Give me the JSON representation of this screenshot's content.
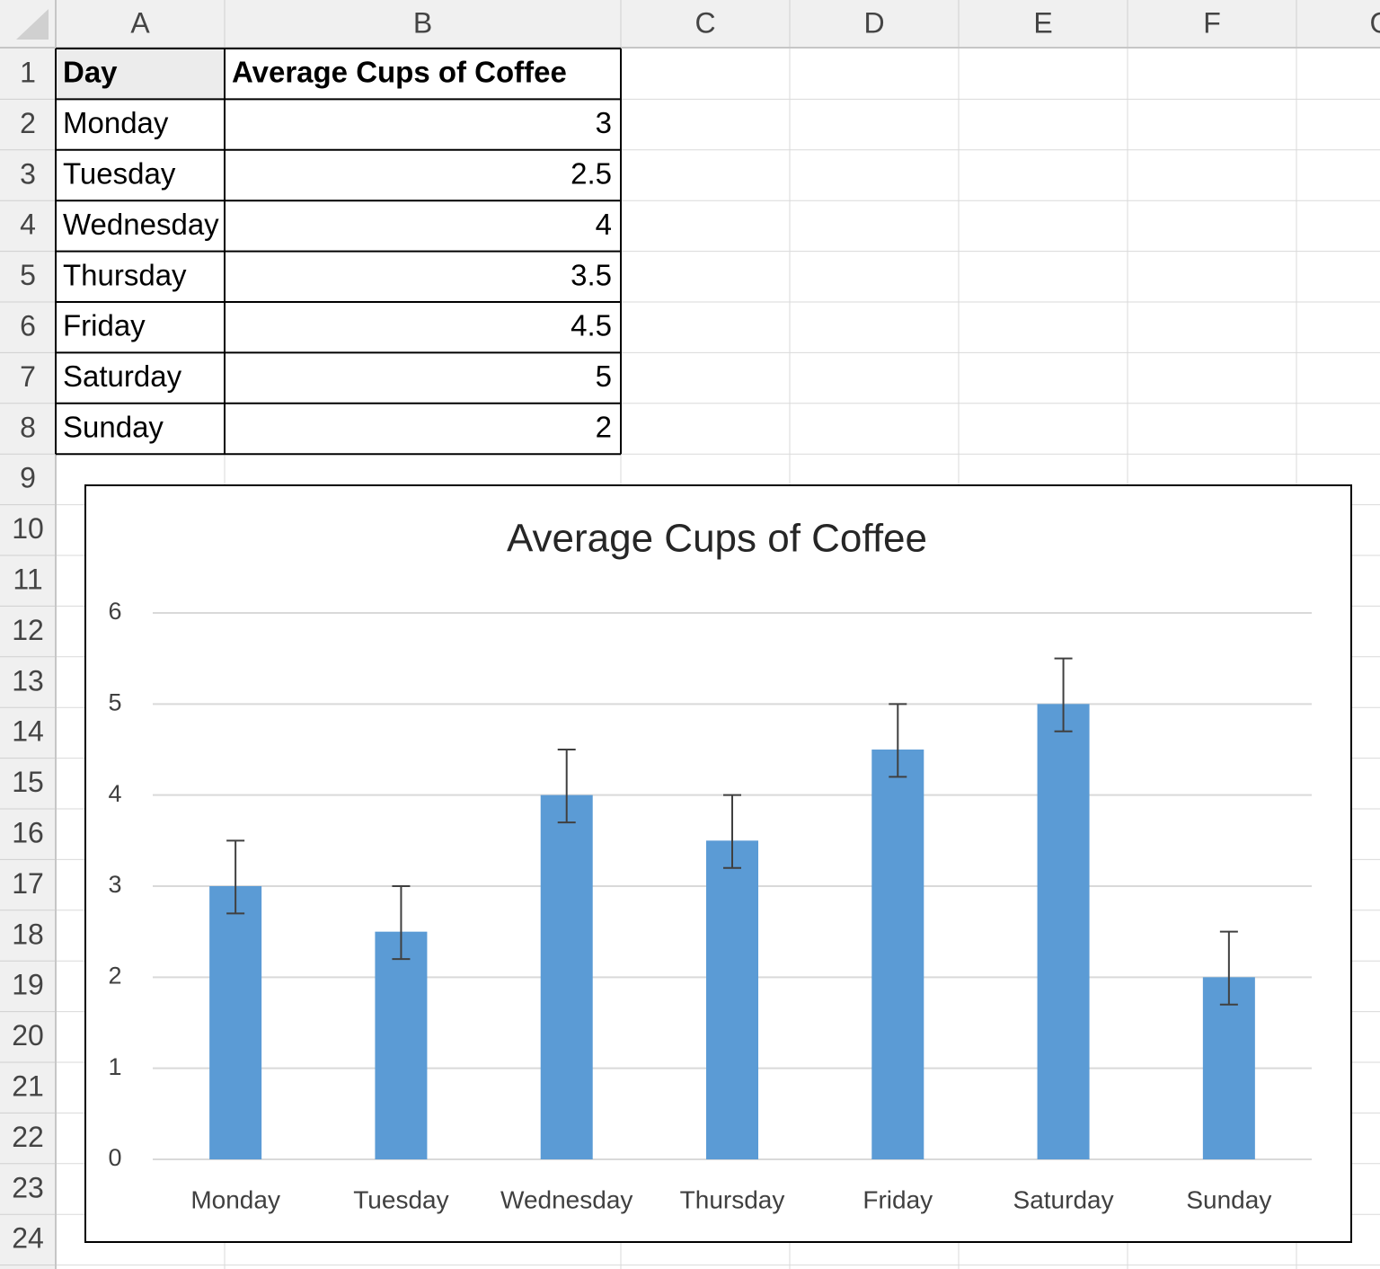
{
  "sheet": {
    "column_headers": [
      "A",
      "B",
      "C",
      "D",
      "E",
      "F",
      "G"
    ],
    "row_headers": [
      1,
      2,
      3,
      4,
      5,
      6,
      7,
      8,
      9,
      10,
      11,
      12,
      13,
      14,
      15,
      16,
      17,
      18,
      19,
      20,
      21,
      22,
      23,
      24
    ],
    "table": {
      "header": [
        "Day",
        "Average Cups of Coffee"
      ],
      "rows": [
        [
          "Monday",
          3
        ],
        [
          "Tuesday",
          2.5
        ],
        [
          "Wednesday",
          4
        ],
        [
          "Thursday",
          3.5
        ],
        [
          "Friday",
          4.5
        ],
        [
          "Saturday",
          5
        ],
        [
          "Sunday",
          2
        ]
      ]
    }
  },
  "chart_data": {
    "type": "bar",
    "title": "Average Cups of Coffee",
    "categories": [
      "Monday",
      "Tuesday",
      "Wednesday",
      "Thursday",
      "Friday",
      "Saturday",
      "Sunday"
    ],
    "values": [
      3,
      2.5,
      4,
      3.5,
      4.5,
      5,
      2
    ],
    "error_plus": [
      0.5,
      0.5,
      0.5,
      0.5,
      0.5,
      0.5,
      0.5
    ],
    "error_minus": [
      0.3,
      0.3,
      0.3,
      0.3,
      0.3,
      0.3,
      0.3
    ],
    "color": "#5b9bd5",
    "ylim": [
      0,
      6
    ],
    "yticks": [
      0,
      1,
      2,
      3,
      4,
      5,
      6
    ],
    "grid": true
  }
}
